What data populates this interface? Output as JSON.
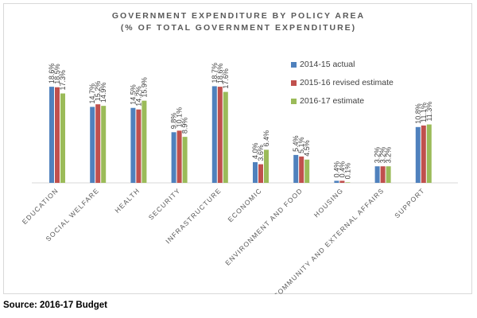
{
  "chart_data": {
    "type": "bar",
    "title": "GOVERNMENT EXPENDITURE BY POLICY AREA",
    "subtitle": "(% OF TOTAL GOVERNMENT EXPENDITURE)",
    "categories": [
      "EDUCATION",
      "SOCIAL WELFARE",
      "HEALTH",
      "SECURITY",
      "INFRASTRUCTURE",
      "ECONOMIC",
      "ENVIRONMENT AND FOOD",
      "HOUSING",
      "COMMUNITY AND EXTERNAL AFFAIRS",
      "SUPPORT"
    ],
    "series": [
      {
        "name": "2014-15 actual",
        "color": "#4f81bd",
        "values": [
          18.6,
          14.7,
          14.5,
          9.8,
          18.7,
          4.0,
          5.4,
          0.4,
          3.2,
          10.8
        ],
        "labels": [
          "18.6%",
          "14.7%",
          "14.5%",
          "9.8%",
          "18.7%",
          "4.0%",
          "5.4%",
          "0.4%",
          "3.2%",
          "10.8%"
        ]
      },
      {
        "name": "2015-16 revised estimate",
        "color": "#c0504d",
        "values": [
          18.5,
          15.2,
          14.2,
          10.1,
          18.6,
          3.6,
          5.1,
          0.4,
          3.2,
          11.1
        ],
        "labels": [
          "18.5%",
          "15.2%",
          "14.2%",
          "10.1%",
          "18.6%",
          "3.6%",
          "5.1%",
          "0.4%",
          "3.2%",
          "11.1%"
        ]
      },
      {
        "name": "2016-17 estimate",
        "color": "#9bbb59",
        "values": [
          17.3,
          14.9,
          15.9,
          8.9,
          17.6,
          6.4,
          4.5,
          0.1,
          3.2,
          11.3
        ],
        "labels": [
          "17.3%",
          "14.9%",
          "15.9%",
          "8.9%",
          "17.6%",
          "6.4%",
          "4.5%",
          "0.1%",
          "3.2%",
          "11.3%"
        ]
      }
    ],
    "ylim": [
      0,
      20
    ],
    "grid": false,
    "legend_position": "right"
  },
  "source": "Source: 2016-17 Budget"
}
